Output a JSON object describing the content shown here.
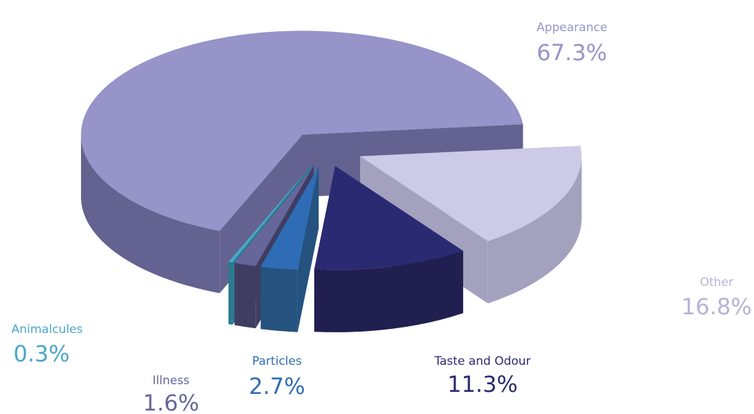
{
  "chart_data": {
    "type": "pie3d",
    "categories": [
      "Other",
      "Taste and Odour",
      "Particles",
      "Illness",
      "Animalcules",
      "Appearance"
    ],
    "values": [
      16.8,
      11.3,
      2.7,
      1.6,
      0.3,
      67.3
    ],
    "value_labels": [
      "16.8%",
      "11.3%",
      "2.7%",
      "1.6%",
      "0.3%",
      "67.3%"
    ],
    "colors": [
      "#cccae6",
      "#2a2a72",
      "#2f6cb6",
      "#67669b",
      "#4aa6c9",
      "#9694c8"
    ],
    "side_colors": [
      "#a3a1bd",
      "#211f50",
      "#25527f",
      "#3f3d62",
      "#2b7a8f",
      "#646290"
    ],
    "label_colors": [
      "#b5b3d6",
      "#2a2a72",
      "#2f6cb6",
      "#67669b",
      "#4aa6c9",
      "#9694c8"
    ]
  }
}
